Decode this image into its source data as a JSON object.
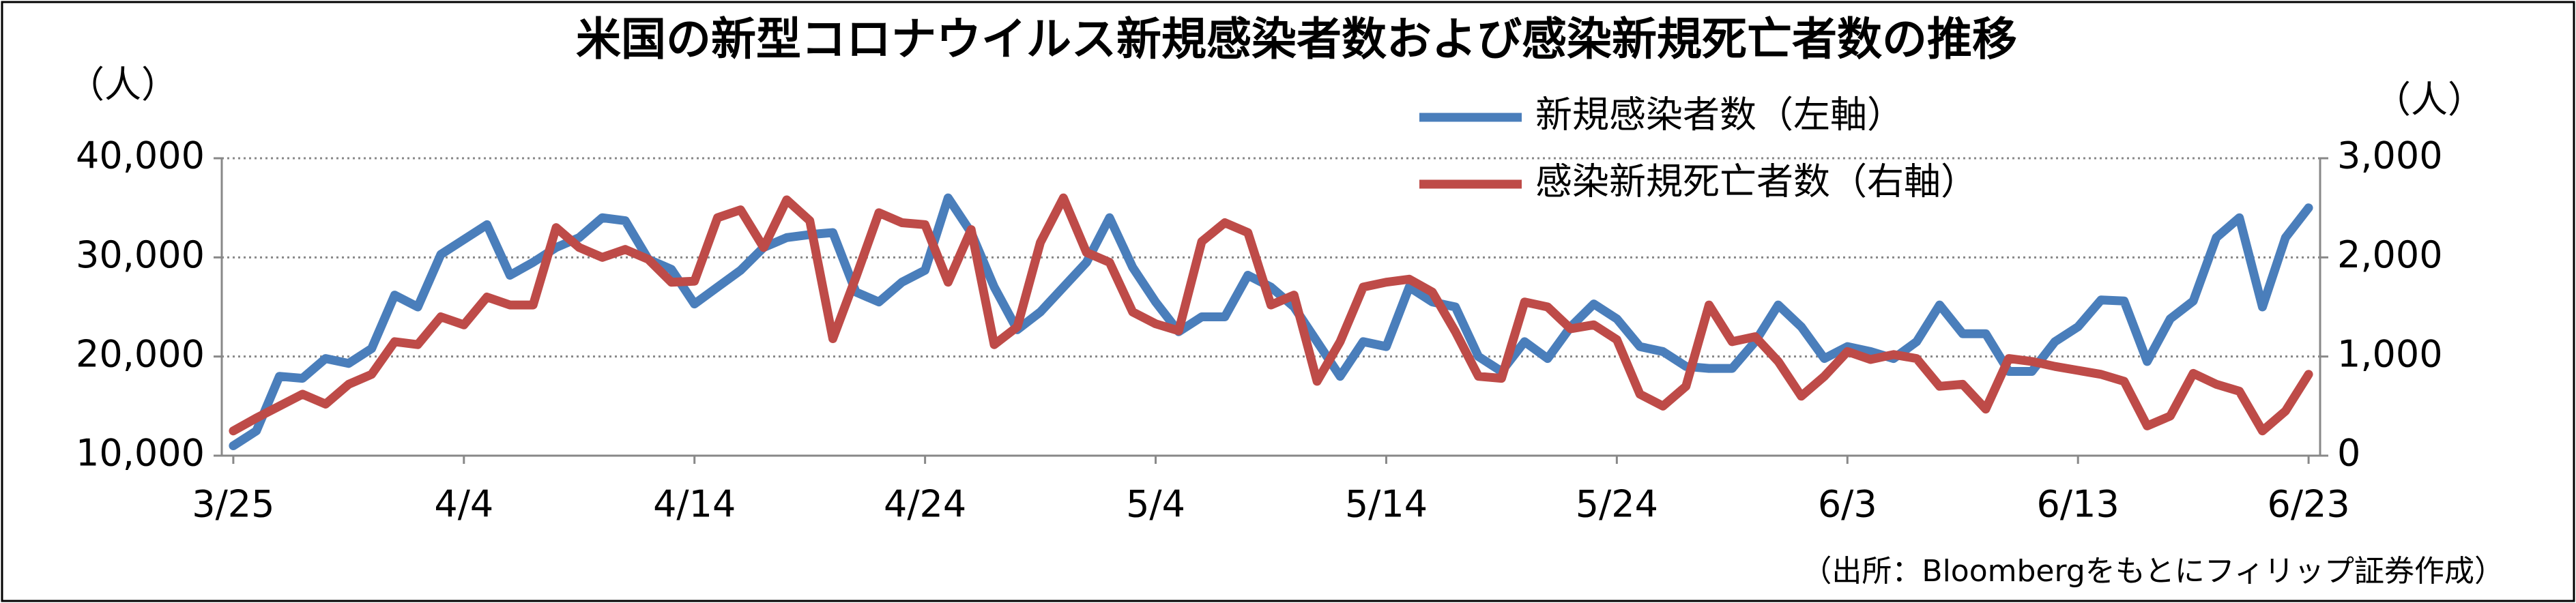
{
  "chart_data": {
    "type": "line",
    "title": "米国の新型コロナウイルス新規感染者数および感染新規死亡者数の推移",
    "y_label": "（人）",
    "y2_label": "（人）",
    "source": "（出所：Bloombergをもとにフィリップ証券作成）",
    "categories": [
      "3/25",
      null,
      null,
      null,
      null,
      null,
      null,
      null,
      null,
      null,
      "4/4",
      null,
      null,
      null,
      null,
      null,
      null,
      null,
      null,
      null,
      "4/14",
      null,
      null,
      null,
      null,
      null,
      null,
      null,
      null,
      null,
      "4/24",
      null,
      null,
      null,
      null,
      null,
      null,
      null,
      null,
      null,
      "5/4",
      null,
      null,
      null,
      null,
      null,
      null,
      null,
      null,
      null,
      "5/14",
      null,
      null,
      null,
      null,
      null,
      null,
      null,
      null,
      null,
      "5/24",
      null,
      null,
      null,
      null,
      null,
      null,
      null,
      null,
      null,
      "6/3",
      null,
      null,
      null,
      null,
      null,
      null,
      null,
      null,
      null,
      "6/13",
      null,
      null,
      null,
      null,
      null,
      null,
      null,
      null,
      null,
      "6/23"
    ],
    "series": [
      {
        "name": "新規感染者数（左軸）",
        "color": "#4a7ebb",
        "values": [
          11000,
          12500,
          18000,
          17800,
          19800,
          19300,
          20800,
          26200,
          25000,
          30300,
          31800,
          33300,
          28200,
          29500,
          31000,
          32000,
          34000,
          33700,
          29800,
          28800,
          25300,
          27000,
          28700,
          31000,
          32000,
          32300,
          32500,
          26500,
          25500,
          27500,
          28700,
          36000,
          32500,
          27000,
          22700,
          24500,
          27000,
          29500,
          34000,
          29000,
          25500,
          22500,
          24000,
          24000,
          28200,
          27000,
          25000,
          21500,
          18000,
          21500,
          21000,
          27000,
          25500,
          25000,
          20000,
          18500,
          21500,
          19800,
          23000,
          25300,
          23800,
          21000,
          20500,
          19000,
          18800,
          18800,
          21500,
          25200,
          23000,
          19800,
          21000,
          20500,
          19800,
          21500,
          25200,
          22300,
          22300,
          18500,
          18500,
          21500,
          23000,
          25700,
          25600,
          19500,
          23800,
          25600,
          32000,
          34000,
          25000,
          32000,
          35000
        ]
      },
      {
        "name": "感染新規死亡者数（右軸）",
        "color": "#be4b48",
        "axis": "y2",
        "values": [
          250,
          380,
          500,
          620,
          520,
          720,
          820,
          1150,
          1120,
          1400,
          1320,
          1600,
          1520,
          1520,
          2300,
          2100,
          2000,
          2080,
          1980,
          1750,
          1760,
          2400,
          2480,
          2100,
          2580,
          2370,
          1180,
          1800,
          2450,
          2350,
          2330,
          1750,
          2280,
          1120,
          1300,
          2150,
          2600,
          2050,
          1950,
          1450,
          1330,
          1260,
          2160,
          2350,
          2250,
          1520,
          1620,
          750,
          1150,
          1700,
          1750,
          1780,
          1650,
          1250,
          800,
          780,
          1550,
          1500,
          1280,
          1320,
          1170,
          620,
          500,
          700,
          1520,
          1150,
          1200,
          950,
          600,
          800,
          1050,
          970,
          1020,
          980,
          700,
          720,
          470,
          980,
          950,
          900,
          860,
          820,
          750,
          300,
          400,
          830,
          720,
          650,
          250,
          450,
          820
        ]
      }
    ],
    "ylim": [
      10000,
      40000
    ],
    "yticks": [
      {
        "value": 10000,
        "label": "10,000"
      },
      {
        "value": 20000,
        "label": "20,000"
      },
      {
        "value": 30000,
        "label": "30,000"
      },
      {
        "value": 40000,
        "label": "40,000"
      }
    ],
    "y2lim": [
      0,
      3000
    ],
    "y2ticks": [
      0,
      {
        "value": 1000,
        "label": "1,000"
      },
      {
        "value": 2000,
        "label": "2,000"
      },
      {
        "value": 3000,
        "label": "3,000"
      }
    ],
    "grid": true
  }
}
